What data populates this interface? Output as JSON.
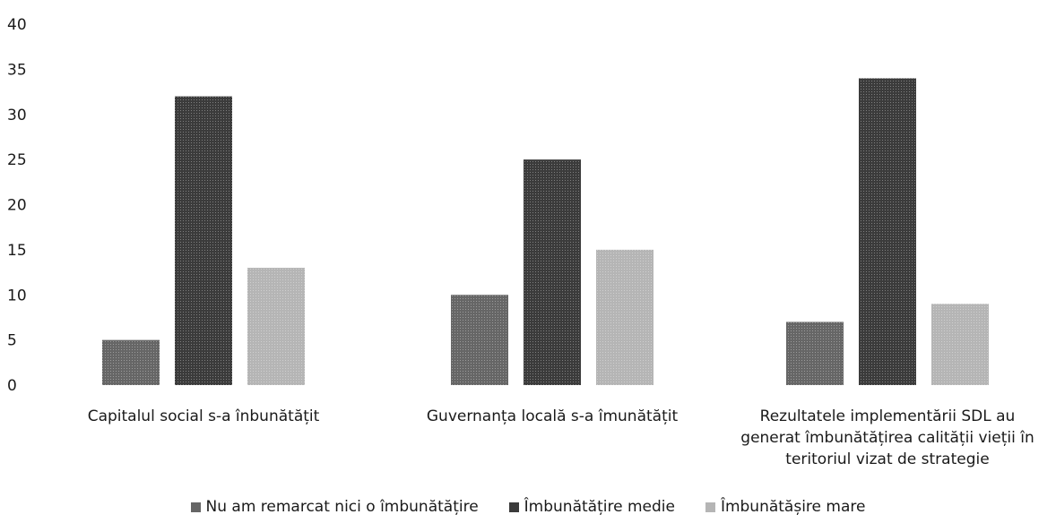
{
  "chart_data": {
    "type": "bar",
    "title": "",
    "xlabel": "",
    "ylabel": "",
    "ylim": [
      0,
      40
    ],
    "yticks": [
      0,
      5,
      10,
      15,
      20,
      25,
      30,
      35,
      40
    ],
    "grid": false,
    "legend_position": "bottom",
    "categories": [
      [
        "Capitalul social s-a înbunătățit"
      ],
      [
        "Guvernanța locală s-a îmunătățit"
      ],
      [
        "Rezultatele implementării SDL au",
        "generat îmbunătățirea calității vieții în",
        "teritoriul vizat de strategie"
      ]
    ],
    "series": [
      {
        "name": "Nu am remarcat nici o îmbunătățire",
        "values": [
          5,
          10,
          7
        ],
        "color": "#666666"
      },
      {
        "name": "Îmbunătățire medie",
        "values": [
          32,
          25,
          34
        ],
        "color": "#3b3b3b"
      },
      {
        "name": "Îmbunătășire mare",
        "values": [
          13,
          15,
          9
        ],
        "color": "#b5b5b5"
      }
    ]
  }
}
